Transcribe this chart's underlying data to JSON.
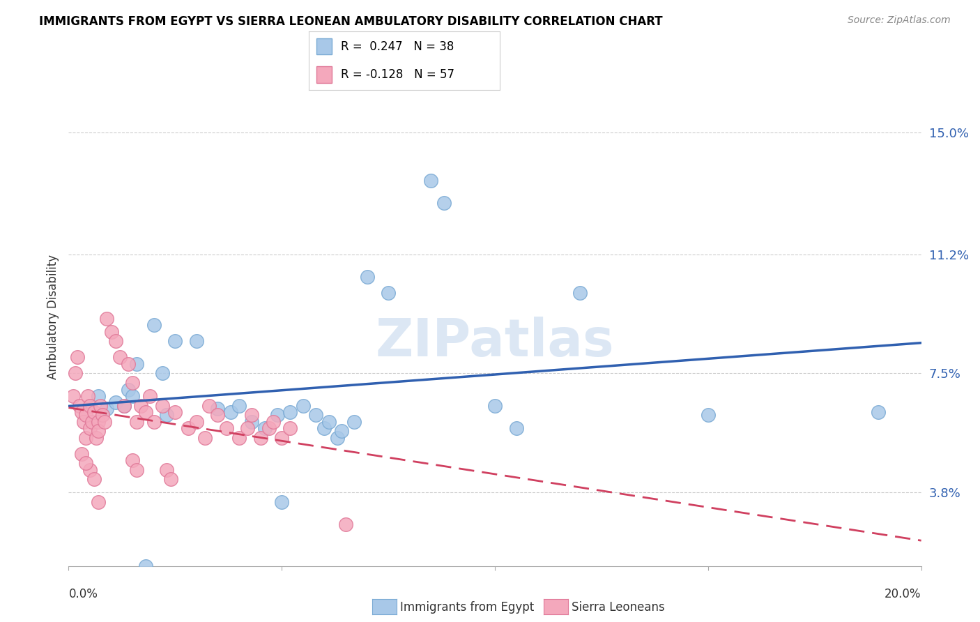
{
  "title": "IMMIGRANTS FROM EGYPT VS SIERRA LEONEAN AMBULATORY DISABILITY CORRELATION CHART",
  "source": "Source: ZipAtlas.com",
  "ylabel": "Ambulatory Disability",
  "ytick_vals": [
    3.8,
    7.5,
    11.2,
    15.0
  ],
  "xlim": [
    0.0,
    20.0
  ],
  "ylim": [
    1.5,
    17.0
  ],
  "watermark": "ZIPatlas",
  "legend_blue_r": "R =  0.247",
  "legend_blue_n": "N = 38",
  "legend_pink_r": "R = -0.128",
  "legend_pink_n": "N = 57",
  "blue_color": "#A8C8E8",
  "blue_edge_color": "#7AAAD4",
  "pink_color": "#F4A8BC",
  "pink_edge_color": "#E07898",
  "blue_line_color": "#3060B0",
  "pink_line_color": "#D04060",
  "blue_scatter_x": [
    0.5,
    0.7,
    0.9,
    1.1,
    1.3,
    1.4,
    1.5,
    1.6,
    2.0,
    2.2,
    2.5,
    3.0,
    3.5,
    3.8,
    4.0,
    4.3,
    4.6,
    4.9,
    5.2,
    5.5,
    5.8,
    6.0,
    6.3,
    6.7,
    7.0,
    7.5,
    8.5,
    8.8,
    10.0,
    10.5,
    12.0,
    15.0,
    19.0,
    1.8,
    5.0,
    6.1,
    6.4,
    2.3
  ],
  "blue_scatter_y": [
    6.5,
    6.8,
    6.4,
    6.6,
    6.5,
    7.0,
    6.8,
    7.8,
    9.0,
    7.5,
    8.5,
    8.5,
    6.4,
    6.3,
    6.5,
    6.0,
    5.8,
    6.2,
    6.3,
    6.5,
    6.2,
    5.8,
    5.5,
    6.0,
    10.5,
    10.0,
    13.5,
    12.8,
    6.5,
    5.8,
    10.0,
    6.2,
    6.3,
    1.5,
    3.5,
    6.0,
    5.7,
    6.2
  ],
  "pink_scatter_x": [
    0.1,
    0.15,
    0.2,
    0.25,
    0.3,
    0.35,
    0.4,
    0.4,
    0.45,
    0.5,
    0.5,
    0.55,
    0.6,
    0.65,
    0.7,
    0.7,
    0.75,
    0.8,
    0.85,
    0.9,
    1.0,
    1.1,
    1.2,
    1.3,
    1.4,
    1.5,
    1.6,
    1.7,
    1.8,
    1.9,
    2.0,
    2.2,
    2.5,
    2.8,
    3.0,
    3.2,
    3.3,
    3.5,
    3.7,
    4.0,
    4.2,
    4.3,
    4.5,
    4.7,
    4.8,
    5.0,
    5.2,
    6.5,
    0.5,
    0.6,
    1.5,
    1.6,
    0.3,
    0.4,
    2.3,
    2.4,
    0.7
  ],
  "pink_scatter_y": [
    6.8,
    7.5,
    8.0,
    6.5,
    6.3,
    6.0,
    6.2,
    5.5,
    6.8,
    6.5,
    5.8,
    6.0,
    6.3,
    5.5,
    6.0,
    5.7,
    6.5,
    6.2,
    6.0,
    9.2,
    8.8,
    8.5,
    8.0,
    6.5,
    7.8,
    7.2,
    6.0,
    6.5,
    6.3,
    6.8,
    6.0,
    6.5,
    6.3,
    5.8,
    6.0,
    5.5,
    6.5,
    6.2,
    5.8,
    5.5,
    5.8,
    6.2,
    5.5,
    5.8,
    6.0,
    5.5,
    5.8,
    2.8,
    4.5,
    4.2,
    4.8,
    4.5,
    5.0,
    4.7,
    4.5,
    4.2,
    3.5
  ]
}
